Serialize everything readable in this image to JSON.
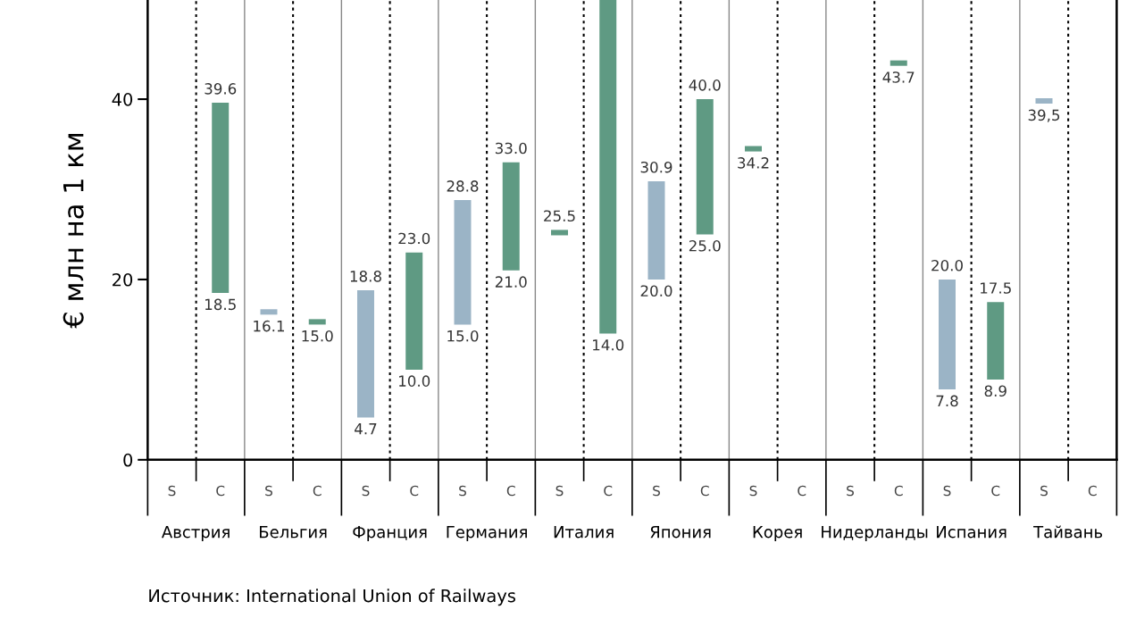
{
  "chart_data": {
    "type": "bar",
    "ylabel": "€ млн на 1 км",
    "categories": [
      "Австрия",
      "Бельгия",
      "Франция",
      "Германия",
      "Италия",
      "Япония",
      "Корея",
      "Нидерланды",
      "Испания",
      "Тайвань"
    ],
    "series": [
      {
        "name": "S",
        "colors": [
          "#9bb4c6",
          "#9bb4c6",
          "#9bb4c6",
          "#9bb4c6",
          "#5f9a83",
          "#9bb4c6",
          "#5f9a83",
          "#9bb4c6",
          "#9bb4c6",
          "#9bb4c6"
        ],
        "base": [
          null,
          16.1,
          4.7,
          15.0,
          24.9,
          20.0,
          34.2,
          null,
          7.8,
          39.5
        ],
        "values": [
          null,
          0.6,
          14.1,
          13.8,
          0.6,
          10.9,
          0.6,
          null,
          12.2,
          0.6
        ],
        "value_labels": [
          null,
          [
            "16.1",
            null
          ],
          [
            "4.7",
            "18.8"
          ],
          [
            "15.0",
            "28.8"
          ],
          [
            null,
            "25.5"
          ],
          [
            "20.0",
            "30.9"
          ],
          [
            "34.2",
            null
          ],
          null,
          [
            "7.8",
            "20.0"
          ],
          [
            "39,5",
            null
          ]
        ]
      },
      {
        "name": "C",
        "color": "#5f9a83",
        "base": [
          18.5,
          15.0,
          10.0,
          21.0,
          14.0,
          25.0,
          null,
          43.7,
          8.9,
          null
        ],
        "values": [
          21.1,
          0.6,
          13.0,
          12.0,
          37.0,
          15.0,
          null,
          0.6,
          8.6,
          null
        ],
        "value_labels": [
          [
            "18.5",
            "39.6"
          ],
          [
            "15.0",
            null
          ],
          [
            "10.0",
            "23.0"
          ],
          [
            "21.0",
            "33.0"
          ],
          [
            "14.0",
            null
          ],
          [
            "25.0",
            "40.0"
          ],
          null,
          [
            "43.7",
            null
          ],
          [
            "8.9",
            "17.5"
          ],
          null
        ]
      }
    ],
    "ylim": [
      0,
      51
    ],
    "yticks": [
      0,
      20,
      40
    ],
    "grid": "x",
    "legend": false,
    "annotations": [
      "Источник: International Union of Railways"
    ]
  }
}
